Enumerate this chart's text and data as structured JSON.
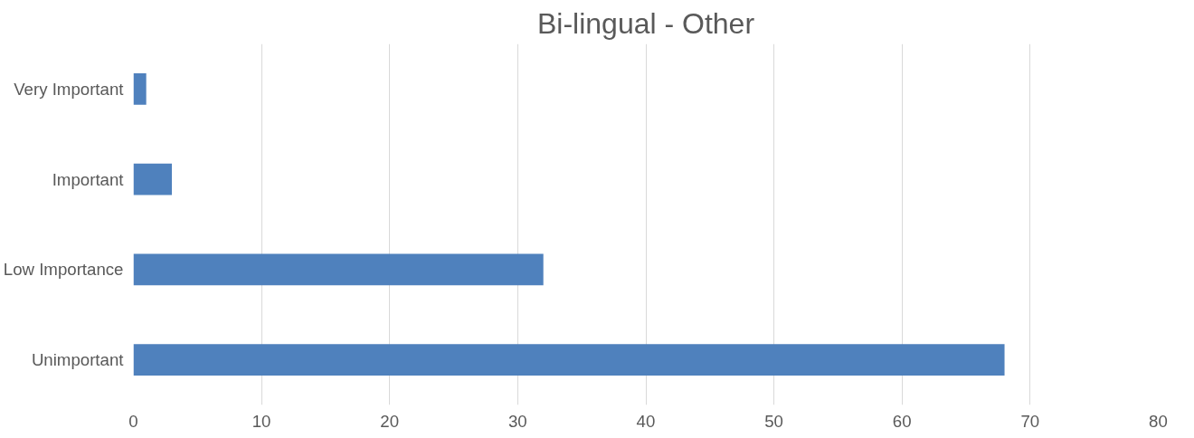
{
  "chart_data": {
    "type": "bar",
    "orientation": "horizontal",
    "title": "Bi-lingual - Other",
    "categories": [
      "Very Important",
      "Important",
      "Low Importance",
      "Unimportant"
    ],
    "values": [
      1,
      3,
      32,
      68
    ],
    "color": "#4f81bd",
    "xlim": [
      0,
      80
    ],
    "xticks": [
      0,
      10,
      20,
      30,
      40,
      50,
      60,
      70,
      80
    ],
    "grid": "x"
  }
}
